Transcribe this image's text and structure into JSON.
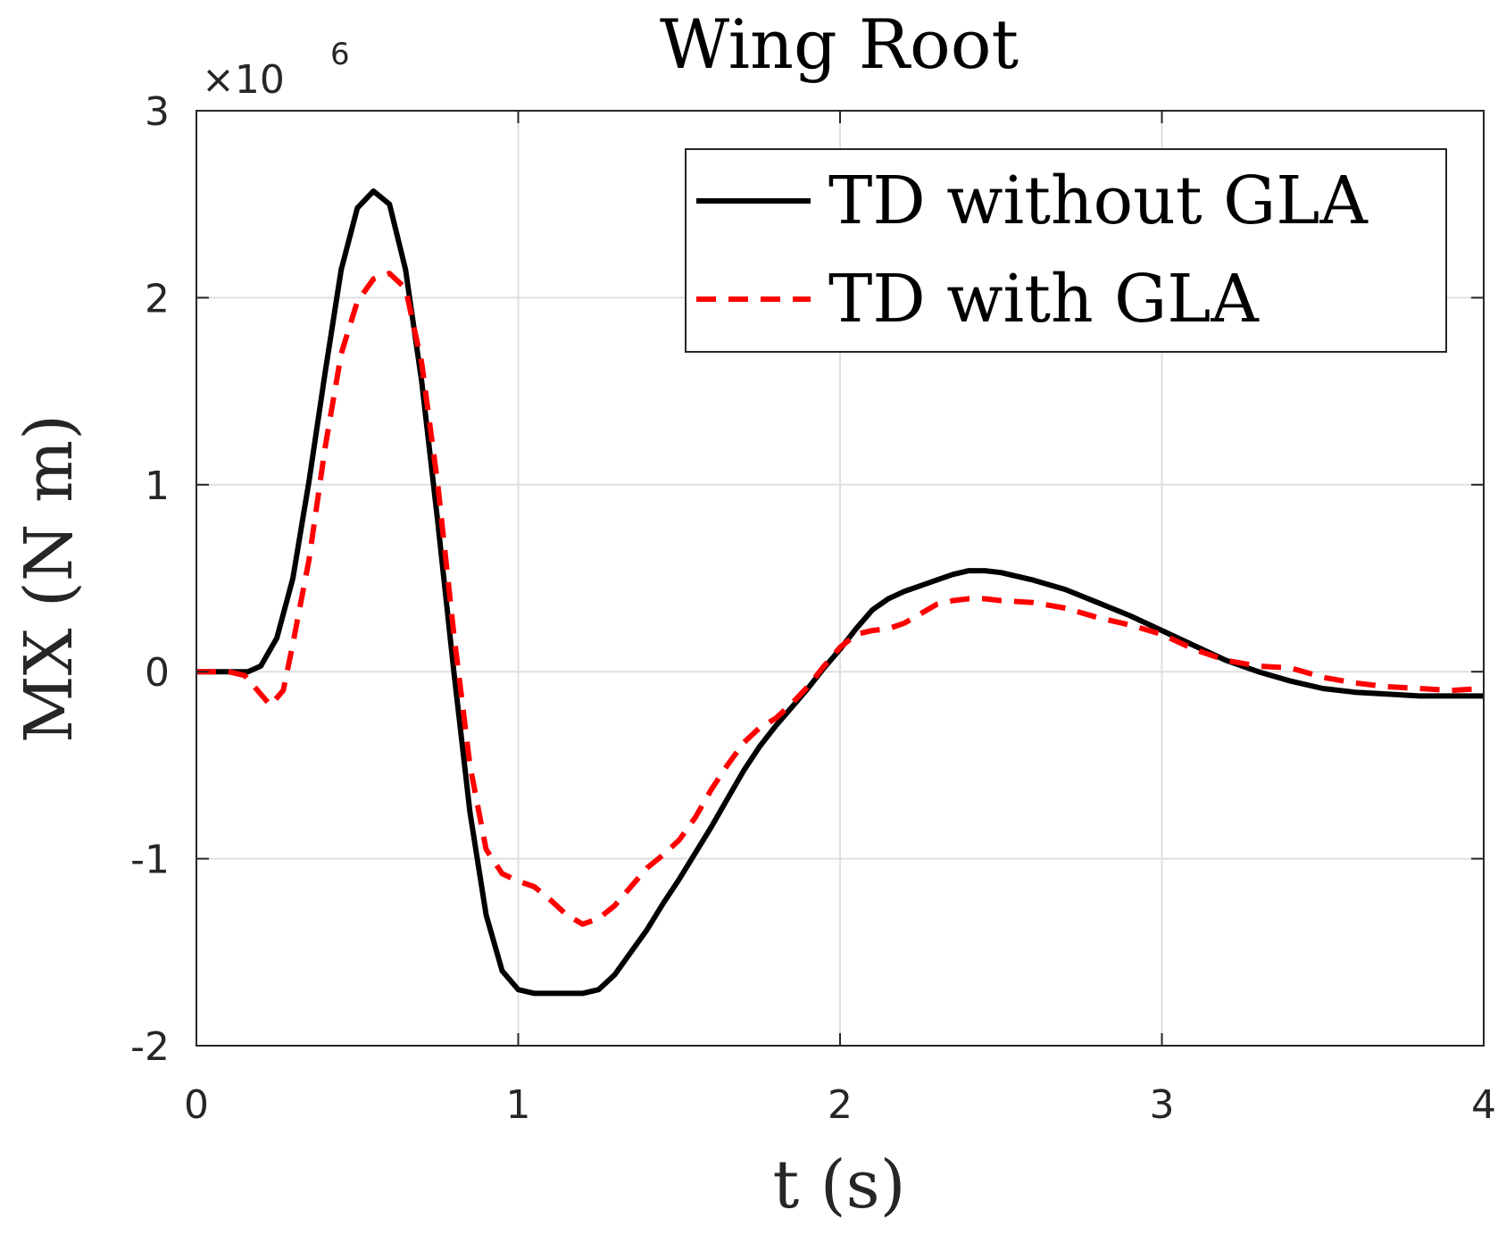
{
  "chart_data": {
    "type": "line",
    "title": "Wing Root",
    "xlabel": "t (s)",
    "ylabel": "MX (N m)",
    "y_exponent_label": "×10",
    "y_exponent_power": "6",
    "xlim": [
      0,
      4
    ],
    "ylim": [
      -2,
      3
    ],
    "x_ticks": [
      0,
      1,
      2,
      3,
      4
    ],
    "x_tick_labels": [
      "0",
      "1",
      "2",
      "3",
      "4"
    ],
    "y_ticks": [
      -2,
      -1,
      0,
      1,
      2,
      3
    ],
    "y_tick_labels": [
      "-2",
      "-1",
      "0",
      "1",
      "2",
      "3"
    ],
    "grid": true,
    "legend_position": "top-right",
    "series": [
      {
        "name": "TD without GLA",
        "color": "#000000",
        "style": "solid",
        "x": [
          0,
          0.1,
          0.16,
          0.2,
          0.25,
          0.3,
          0.35,
          0.4,
          0.45,
          0.5,
          0.55,
          0.6,
          0.65,
          0.7,
          0.75,
          0.8,
          0.85,
          0.9,
          0.95,
          1.0,
          1.05,
          1.1,
          1.15,
          1.2,
          1.25,
          1.3,
          1.35,
          1.4,
          1.45,
          1.5,
          1.55,
          1.6,
          1.65,
          1.7,
          1.75,
          1.8,
          1.85,
          1.9,
          1.95,
          2.0,
          2.05,
          2.1,
          2.15,
          2.2,
          2.25,
          2.3,
          2.35,
          2.4,
          2.45,
          2.5,
          2.6,
          2.7,
          2.8,
          2.9,
          3.0,
          3.1,
          3.2,
          3.3,
          3.4,
          3.5,
          3.6,
          3.7,
          3.8,
          3.9,
          4.0
        ],
        "values": [
          0.0,
          0.0,
          0.0,
          0.03,
          0.18,
          0.5,
          1.02,
          1.6,
          2.15,
          2.48,
          2.57,
          2.5,
          2.15,
          1.55,
          0.8,
          0.0,
          -0.75,
          -1.3,
          -1.6,
          -1.7,
          -1.72,
          -1.72,
          -1.72,
          -1.72,
          -1.7,
          -1.62,
          -1.5,
          -1.38,
          -1.24,
          -1.11,
          -0.97,
          -0.83,
          -0.68,
          -0.53,
          -0.4,
          -0.29,
          -0.19,
          -0.09,
          0.02,
          0.12,
          0.23,
          0.33,
          0.39,
          0.43,
          0.46,
          0.49,
          0.52,
          0.54,
          0.54,
          0.53,
          0.49,
          0.44,
          0.37,
          0.3,
          0.22,
          0.14,
          0.06,
          0.0,
          -0.05,
          -0.09,
          -0.11,
          -0.12,
          -0.13,
          -0.13,
          -0.13
        ]
      },
      {
        "name": "TD with GLA",
        "color": "#ff0000",
        "style": "dashed",
        "x": [
          0,
          0.1,
          0.15,
          0.2,
          0.23,
          0.27,
          0.3,
          0.35,
          0.4,
          0.45,
          0.5,
          0.55,
          0.6,
          0.65,
          0.7,
          0.75,
          0.8,
          0.85,
          0.9,
          0.95,
          1.0,
          1.05,
          1.1,
          1.15,
          1.2,
          1.25,
          1.3,
          1.35,
          1.4,
          1.45,
          1.5,
          1.55,
          1.6,
          1.65,
          1.7,
          1.75,
          1.8,
          1.85,
          1.9,
          1.95,
          2.0,
          2.05,
          2.1,
          2.15,
          2.2,
          2.25,
          2.3,
          2.35,
          2.4,
          2.45,
          2.5,
          2.6,
          2.7,
          2.8,
          2.9,
          3.0,
          3.1,
          3.2,
          3.3,
          3.4,
          3.5,
          3.6,
          3.7,
          3.8,
          3.9,
          4.0
        ],
        "values": [
          0.0,
          0.0,
          -0.02,
          -0.12,
          -0.18,
          -0.1,
          0.15,
          0.6,
          1.2,
          1.7,
          1.98,
          2.1,
          2.13,
          2.05,
          1.65,
          1.0,
          0.2,
          -0.5,
          -0.95,
          -1.08,
          -1.12,
          -1.15,
          -1.22,
          -1.3,
          -1.35,
          -1.32,
          -1.25,
          -1.15,
          -1.05,
          -0.98,
          -0.9,
          -0.78,
          -0.63,
          -0.5,
          -0.38,
          -0.3,
          -0.25,
          -0.17,
          -0.08,
          0.03,
          0.13,
          0.2,
          0.22,
          0.23,
          0.26,
          0.31,
          0.36,
          0.38,
          0.39,
          0.39,
          0.38,
          0.37,
          0.34,
          0.29,
          0.25,
          0.2,
          0.12,
          0.06,
          0.03,
          0.02,
          -0.03,
          -0.06,
          -0.08,
          -0.09,
          -0.1,
          -0.09
        ]
      }
    ]
  }
}
